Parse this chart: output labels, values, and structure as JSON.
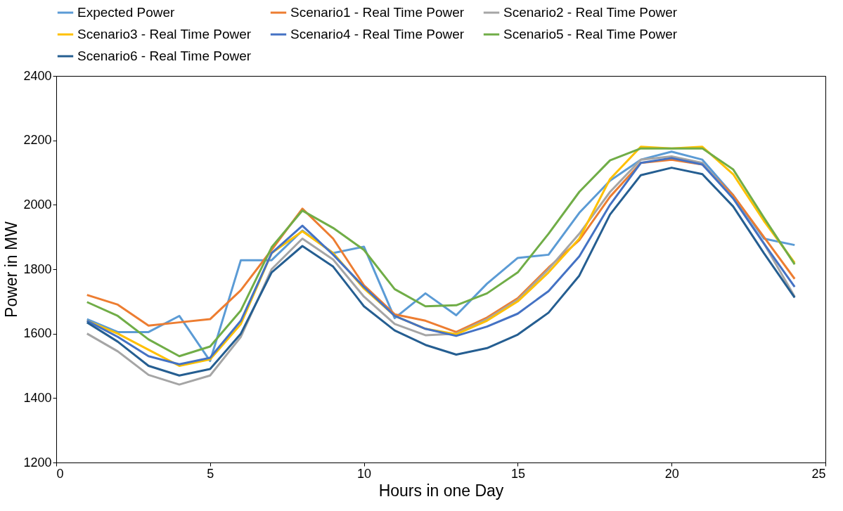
{
  "chart_data": {
    "type": "line",
    "xlabel": "Hours in one Day",
    "ylabel": "Power in MW",
    "x": [
      1,
      2,
      3,
      4,
      5,
      6,
      7,
      8,
      9,
      10,
      11,
      12,
      13,
      14,
      15,
      16,
      17,
      18,
      19,
      20,
      21,
      22,
      23,
      24
    ],
    "xlim": [
      0,
      25
    ],
    "xticks": [
      0,
      5,
      10,
      15,
      20,
      25
    ],
    "ylim": [
      1200,
      2400
    ],
    "yticks": [
      1200,
      1400,
      1600,
      1800,
      2000,
      2200,
      2400
    ],
    "grid": false,
    "legend": "top",
    "marker": "none",
    "line_style": "solid",
    "series": [
      {
        "name": "Expected Power",
        "color": "#5b9bd5",
        "values": [
          1645,
          1605,
          1605,
          1655,
          1515,
          1828,
          1828,
          1920,
          1850,
          1870,
          1648,
          1725,
          1657,
          1755,
          1835,
          1845,
          1975,
          2075,
          2140,
          2165,
          2140,
          2030,
          1895,
          1875
        ]
      },
      {
        "name": "Scenario1 - Real Time Power",
        "color": "#ed7d31",
        "values": [
          1720,
          1690,
          1625,
          1635,
          1645,
          1735,
          1860,
          1988,
          1895,
          1750,
          1660,
          1640,
          1605,
          1650,
          1710,
          1805,
          1890,
          2025,
          2130,
          2140,
          2125,
          2030,
          1900,
          1770
        ]
      },
      {
        "name": "Scenario2 - Real Time Power",
        "color": "#a5a5a5",
        "values": [
          1600,
          1545,
          1472,
          1442,
          1470,
          1590,
          1800,
          1895,
          1830,
          1715,
          1630,
          1595,
          1600,
          1645,
          1705,
          1800,
          1910,
          2040,
          2140,
          2150,
          2130,
          2020,
          1880,
          1715
        ]
      },
      {
        "name": "Scenario3 - Real Time Power",
        "color": "#ffc000",
        "values": [
          1640,
          1600,
          1550,
          1500,
          1520,
          1630,
          1850,
          1918,
          1850,
          1740,
          1655,
          1615,
          1598,
          1640,
          1700,
          1790,
          1895,
          2080,
          2180,
          2175,
          2180,
          2095,
          1950,
          1820
        ]
      },
      {
        "name": "Scenario4 - Real Time Power",
        "color": "#4472c4",
        "values": [
          1640,
          1590,
          1530,
          1505,
          1525,
          1640,
          1850,
          1935,
          1845,
          1745,
          1655,
          1615,
          1593,
          1622,
          1662,
          1732,
          1840,
          2000,
          2130,
          2145,
          2125,
          2020,
          1880,
          1745
        ]
      },
      {
        "name": "Scenario5 - Real Time Power",
        "color": "#70ad47",
        "values": [
          1698,
          1655,
          1582,
          1530,
          1560,
          1672,
          1868,
          1982,
          1928,
          1860,
          1738,
          1685,
          1688,
          1725,
          1790,
          1910,
          2040,
          2138,
          2175,
          2175,
          2175,
          2110,
          1960,
          1815
        ]
      },
      {
        "name": "Scenario6 - Real Time Power",
        "color": "#255e91",
        "values": [
          1635,
          1575,
          1500,
          1470,
          1490,
          1600,
          1790,
          1872,
          1808,
          1685,
          1610,
          1565,
          1535,
          1555,
          1597,
          1665,
          1780,
          1970,
          2092,
          2115,
          2095,
          1995,
          1850,
          1712
        ]
      }
    ]
  }
}
